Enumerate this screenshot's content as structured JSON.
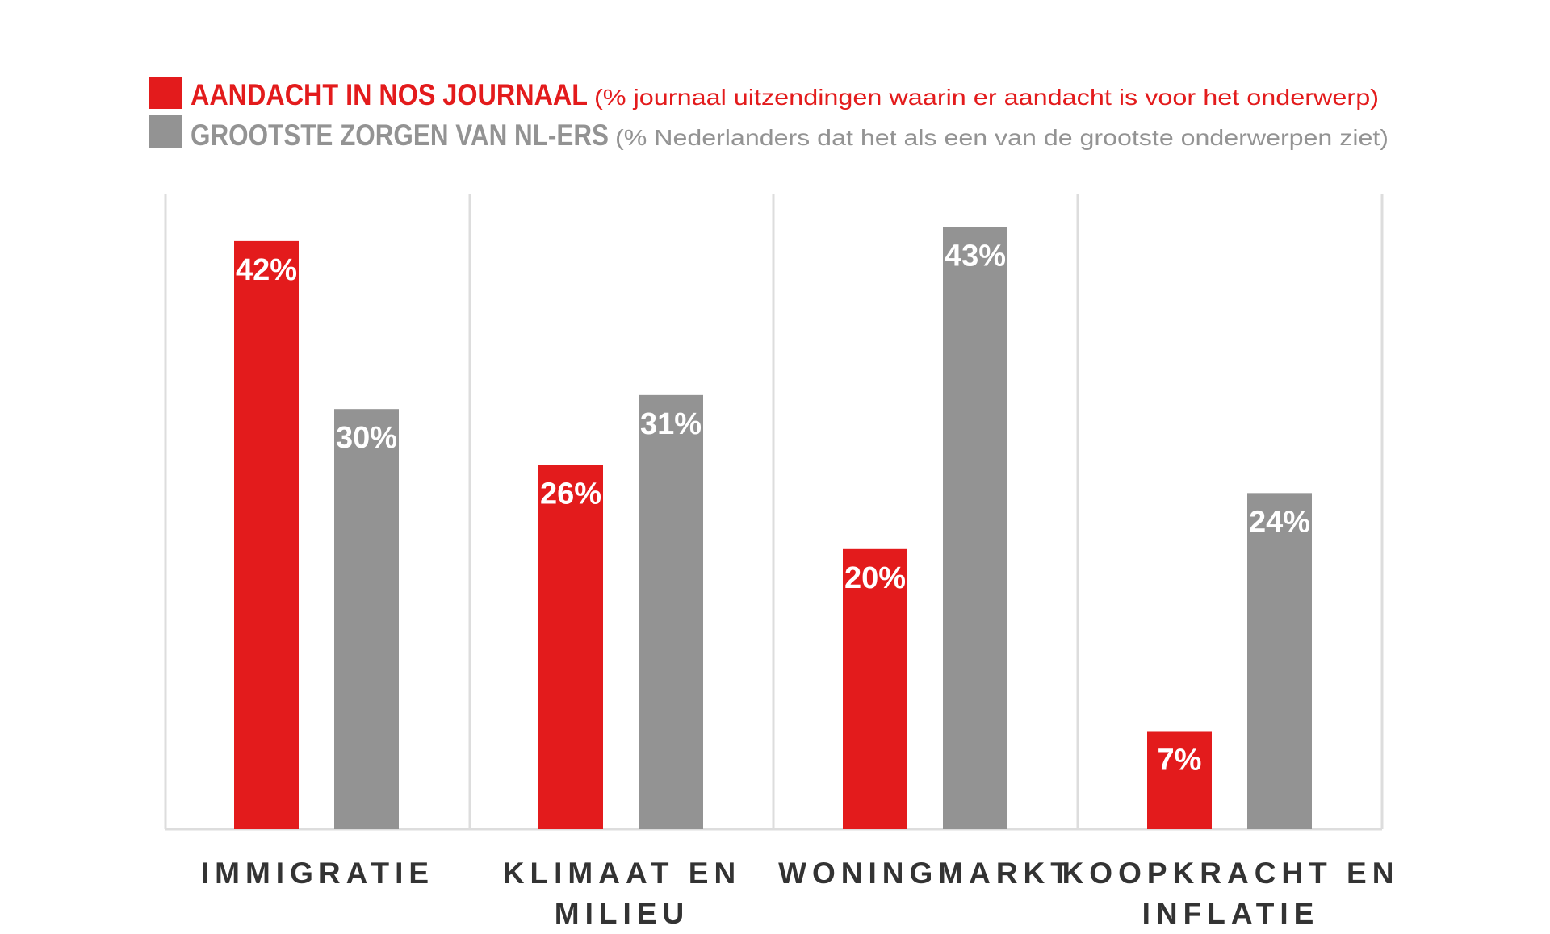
{
  "legend": [
    {
      "title": "AANDACHT IN NOS JOURNAAL",
      "subtitle": "(% journaal uitzendingen waarin er aandacht is voor het onderwerp)"
    },
    {
      "title": "GROOTSTE ZORGEN VAN NL-ERS",
      "subtitle": "(% Nederlanders dat het als een van de grootste onderwerpen ziet)"
    }
  ],
  "chart_data": {
    "type": "bar",
    "categories": [
      [
        "IMMIGRATIE"
      ],
      [
        "KLIMAAT EN",
        "MILIEU"
      ],
      [
        "WONINGMARKT"
      ],
      [
        "KOOPKRACHT EN",
        "INFLATIE"
      ]
    ],
    "series": [
      {
        "name": "AANDACHT IN NOS JOURNAAL",
        "values": [
          42,
          26,
          20,
          7
        ],
        "labels": [
          "42%",
          "26%",
          "20%",
          "7%"
        ],
        "color": "#e31b1c"
      },
      {
        "name": "GROOTSTE ZORGEN VAN NL-ERS",
        "values": [
          30,
          31,
          43,
          24
        ],
        "labels": [
          "30%",
          "31%",
          "43%",
          "24%"
        ],
        "color": "#939393"
      }
    ],
    "ylim": [
      0,
      45
    ],
    "grid": "vertical separators",
    "legend_position": "top-left"
  }
}
